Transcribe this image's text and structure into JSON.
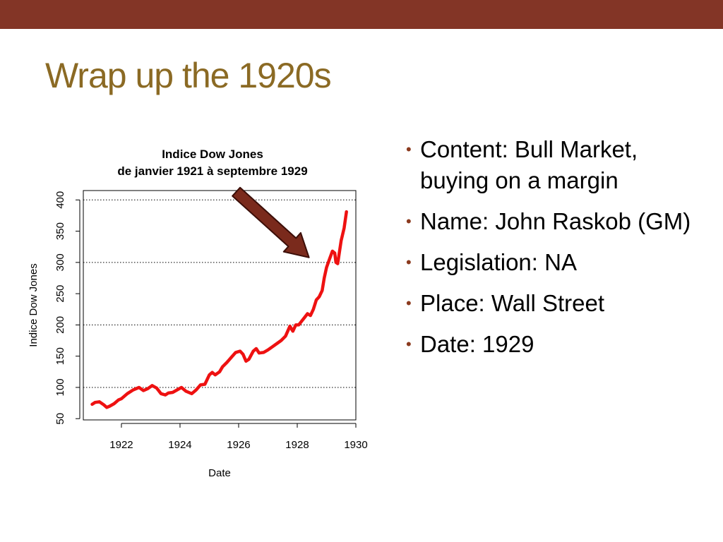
{
  "slide": {
    "title": "Wrap up the 1920s",
    "bullets": [
      "Content: Bull Market, buying on a margin",
      "Name: John Raskob (GM)",
      "Legislation: NA",
      "Place: Wall Street",
      "Date: 1929"
    ],
    "bullet_glyph": "•"
  },
  "colors": {
    "top_bar": "#833526",
    "title": "#8B6A24",
    "bullet": "#8B3A1E",
    "series": "#EE1111",
    "arrow_fill": "#7A2A1C",
    "arrow_stroke": "#3B0E08"
  },
  "chart_data": {
    "type": "line",
    "title": "Indice Dow Jones",
    "subtitle": "de janvier 1921 à septembre 1929",
    "xlabel": "Date",
    "ylabel": "Indice Dow Jones",
    "xlim": [
      1920.7,
      1930.0
    ],
    "ylim": [
      48,
      415
    ],
    "x_ticks": [
      1922,
      1924,
      1926,
      1928,
      1930
    ],
    "y_ticks": [
      50,
      100,
      150,
      200,
      250,
      300,
      350,
      400
    ],
    "gridlines_y": [
      100,
      200,
      300,
      400
    ],
    "grid": "horizontal-dotted",
    "annotations": [
      {
        "type": "arrow",
        "points_to": [
          1928.4,
          308
        ]
      }
    ],
    "series": [
      {
        "name": "Indice Dow Jones",
        "x": [
          1921.0,
          1921.1,
          1921.25,
          1921.4,
          1921.5,
          1921.6,
          1921.75,
          1921.9,
          1922.0,
          1922.2,
          1922.4,
          1922.6,
          1922.75,
          1922.9,
          1923.05,
          1923.2,
          1923.35,
          1923.5,
          1923.6,
          1923.75,
          1923.9,
          1924.05,
          1924.2,
          1924.4,
          1924.55,
          1924.7,
          1924.85,
          1925.0,
          1925.1,
          1925.2,
          1925.35,
          1925.45,
          1925.6,
          1925.75,
          1925.9,
          1926.05,
          1926.15,
          1926.25,
          1926.35,
          1926.5,
          1926.6,
          1926.7,
          1926.85,
          1927.0,
          1927.15,
          1927.3,
          1927.45,
          1927.6,
          1927.75,
          1927.85,
          1927.95,
          1928.05,
          1928.15,
          1928.25,
          1928.35,
          1928.45,
          1928.55,
          1928.65,
          1928.75,
          1928.85,
          1928.92,
          1929.0,
          1929.1,
          1929.2,
          1929.28,
          1929.32,
          1929.38,
          1929.45,
          1929.5,
          1929.55,
          1929.6,
          1929.68
        ],
        "y": [
          73,
          76,
          77,
          72,
          68,
          70,
          74,
          80,
          82,
          90,
          96,
          100,
          95,
          98,
          103,
          99,
          90,
          88,
          91,
          92,
          96,
          100,
          94,
          90,
          96,
          104,
          105,
          120,
          124,
          120,
          125,
          133,
          140,
          148,
          156,
          158,
          153,
          142,
          145,
          158,
          162,
          155,
          156,
          160,
          165,
          170,
          175,
          182,
          198,
          190,
          200,
          200,
          206,
          212,
          218,
          215,
          225,
          240,
          245,
          255,
          275,
          292,
          305,
          318,
          315,
          300,
          298,
          320,
          335,
          345,
          355,
          381
        ]
      }
    ]
  }
}
